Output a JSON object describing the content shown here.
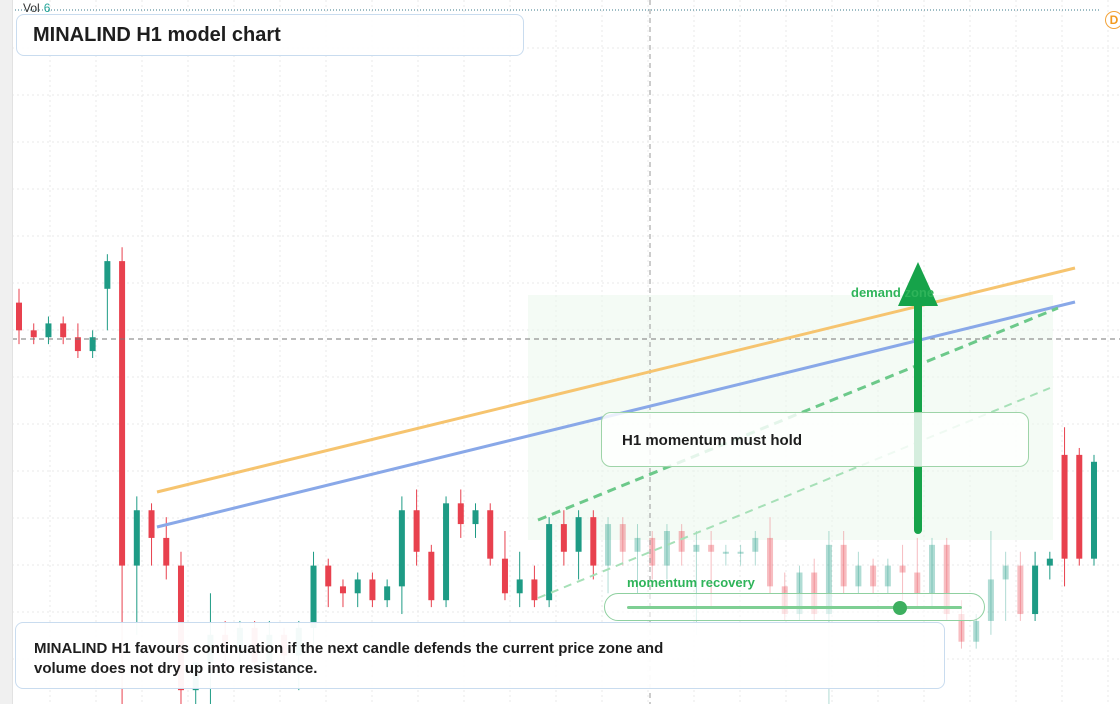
{
  "header": {
    "volume_label": "Vol",
    "volume_value": "6",
    "badge_letter": "D"
  },
  "title": "MINALIND H1 model chart",
  "callout": "H1 momentum must hold",
  "zone_label": "demand zone",
  "slider": {
    "label": "momentum recovery",
    "value": 0.81
  },
  "note": {
    "line1": "MINALIND H1 favours continuation if the next candle defends the current price zone and",
    "line2": "volume does not dry up into resistance."
  },
  "colors": {
    "up": "#1e9b85",
    "down": "#e8414e",
    "accent": "#16a34a",
    "line_orange": "#f6c46f",
    "line_blue": "#89a8e8"
  },
  "chart_data": {
    "type": "candlestick",
    "title": "MINALIND H1 model chart",
    "price_levels": {
      "scale_min": 0,
      "scale_max": 100,
      "crosshair_level": 65
    },
    "candles": [
      {
        "o": 58,
        "h": 60,
        "l": 52,
        "c": 54,
        "up": false
      },
      {
        "o": 54,
        "h": 55,
        "l": 52,
        "c": 53,
        "up": false
      },
      {
        "o": 53,
        "h": 56,
        "l": 52,
        "c": 55,
        "up": true
      },
      {
        "o": 55,
        "h": 56,
        "l": 52,
        "c": 53,
        "up": false
      },
      {
        "o": 53,
        "h": 55,
        "l": 50,
        "c": 51,
        "up": false
      },
      {
        "o": 51,
        "h": 54,
        "l": 50,
        "c": 53,
        "up": true
      },
      {
        "o": 60,
        "h": 65,
        "l": 54,
        "c": 64,
        "up": true
      },
      {
        "o": 64,
        "h": 66,
        "l": -10,
        "c": 20,
        "up": false
      },
      {
        "o": 20,
        "h": 30,
        "l": 10,
        "c": 28,
        "up": true
      },
      {
        "o": 28,
        "h": 29,
        "l": 20,
        "c": 24,
        "up": false
      },
      {
        "o": 24,
        "h": 27,
        "l": 18,
        "c": 20,
        "up": false
      },
      {
        "o": 20,
        "h": 22,
        "l": 0,
        "c": 2,
        "up": false
      },
      {
        "o": 2,
        "h": 6,
        "l": 0,
        "c": 6,
        "up": true
      },
      {
        "o": 6,
        "h": 16,
        "l": 0,
        "c": 10,
        "up": true
      },
      {
        "o": 10,
        "h": 12,
        "l": 4,
        "c": 8,
        "up": false
      },
      {
        "o": 8,
        "h": 12,
        "l": 6,
        "c": 11,
        "up": true
      },
      {
        "o": 11,
        "h": 12,
        "l": 5,
        "c": 6,
        "up": false
      },
      {
        "o": 6,
        "h": 12,
        "l": 6,
        "c": 10,
        "up": true
      },
      {
        "o": 10,
        "h": 11,
        "l": 5,
        "c": 7,
        "up": false
      },
      {
        "o": 7,
        "h": 12,
        "l": 2,
        "c": 11,
        "up": true
      },
      {
        "o": 11,
        "h": 22,
        "l": 8,
        "c": 20,
        "up": true
      },
      {
        "o": 20,
        "h": 21,
        "l": 14,
        "c": 17,
        "up": false
      },
      {
        "o": 17,
        "h": 18,
        "l": 14,
        "c": 16,
        "up": false
      },
      {
        "o": 16,
        "h": 19,
        "l": 14,
        "c": 18,
        "up": true
      },
      {
        "o": 18,
        "h": 19,
        "l": 14,
        "c": 15,
        "up": false
      },
      {
        "o": 15,
        "h": 18,
        "l": 14,
        "c": 17,
        "up": true
      },
      {
        "o": 17,
        "h": 30,
        "l": 13,
        "c": 28,
        "up": true
      },
      {
        "o": 28,
        "h": 31,
        "l": 20,
        "c": 22,
        "up": false
      },
      {
        "o": 22,
        "h": 23,
        "l": 14,
        "c": 15,
        "up": false
      },
      {
        "o": 15,
        "h": 30,
        "l": 14,
        "c": 29,
        "up": true
      },
      {
        "o": 29,
        "h": 31,
        "l": 24,
        "c": 26,
        "up": false
      },
      {
        "o": 26,
        "h": 29,
        "l": 24,
        "c": 28,
        "up": true
      },
      {
        "o": 28,
        "h": 29,
        "l": 20,
        "c": 21,
        "up": false
      },
      {
        "o": 21,
        "h": 25,
        "l": 15,
        "c": 16,
        "up": false
      },
      {
        "o": 16,
        "h": 22,
        "l": 14,
        "c": 18,
        "up": true
      },
      {
        "o": 18,
        "h": 20,
        "l": 14,
        "c": 15,
        "up": false
      },
      {
        "o": 15,
        "h": 27,
        "l": 14,
        "c": 26,
        "up": true
      },
      {
        "o": 26,
        "h": 28,
        "l": 20,
        "c": 22,
        "up": false
      },
      {
        "o": 22,
        "h": 28,
        "l": 18,
        "c": 27,
        "up": true
      },
      {
        "o": 27,
        "h": 28,
        "l": 18,
        "c": 20,
        "up": false
      },
      {
        "o": 20,
        "h": 27,
        "l": 16,
        "c": 26,
        "up": true
      },
      {
        "o": 26,
        "h": 27,
        "l": 20,
        "c": 22,
        "up": false
      },
      {
        "o": 22,
        "h": 26,
        "l": 16,
        "c": 24,
        "up": true
      },
      {
        "o": 24,
        "h": 25,
        "l": 18,
        "c": 20,
        "up": false
      },
      {
        "o": 20,
        "h": 26,
        "l": 18,
        "c": 25,
        "up": true
      },
      {
        "o": 25,
        "h": 26,
        "l": 20,
        "c": 22,
        "up": false
      },
      {
        "o": 22,
        "h": 25,
        "l": 10,
        "c": 23,
        "up": true
      },
      {
        "o": 23,
        "h": 25,
        "l": 14,
        "c": 22,
        "up": false
      },
      {
        "o": 22,
        "h": 23,
        "l": 20,
        "c": 22,
        "up": true
      },
      {
        "o": 22,
        "h": 23,
        "l": 20,
        "c": 22,
        "up": true
      },
      {
        "o": 22,
        "h": 25,
        "l": 20,
        "c": 24,
        "up": true
      },
      {
        "o": 24,
        "h": 27,
        "l": 16,
        "c": 17,
        "up": false
      },
      {
        "o": 17,
        "h": 19,
        "l": 12,
        "c": 13,
        "up": false
      },
      {
        "o": 13,
        "h": 20,
        "l": 12,
        "c": 19,
        "up": true
      },
      {
        "o": 19,
        "h": 21,
        "l": 12,
        "c": 13,
        "up": false
      },
      {
        "o": 13,
        "h": 25,
        "l": 0,
        "c": 23,
        "up": true
      },
      {
        "o": 23,
        "h": 25,
        "l": 16,
        "c": 17,
        "up": false
      },
      {
        "o": 17,
        "h": 22,
        "l": 16,
        "c": 20,
        "up": true
      },
      {
        "o": 20,
        "h": 21,
        "l": 16,
        "c": 17,
        "up": false
      },
      {
        "o": 17,
        "h": 21,
        "l": 16,
        "c": 20,
        "up": true
      },
      {
        "o": 20,
        "h": 23,
        "l": 15,
        "c": 19,
        "up": false
      },
      {
        "o": 19,
        "h": 24,
        "l": 14,
        "c": 16,
        "up": false
      },
      {
        "o": 16,
        "h": 24,
        "l": 14,
        "c": 23,
        "up": true
      },
      {
        "o": 23,
        "h": 24,
        "l": 12,
        "c": 13,
        "up": false
      },
      {
        "o": 13,
        "h": 15,
        "l": 8,
        "c": 9,
        "up": false
      },
      {
        "o": 9,
        "h": 13,
        "l": 8,
        "c": 12,
        "up": true
      },
      {
        "o": 12,
        "h": 25,
        "l": 10,
        "c": 18,
        "up": true
      },
      {
        "o": 18,
        "h": 22,
        "l": 12,
        "c": 20,
        "up": true
      },
      {
        "o": 20,
        "h": 22,
        "l": 12,
        "c": 13,
        "up": false
      },
      {
        "o": 13,
        "h": 22,
        "l": 12,
        "c": 20,
        "up": true
      },
      {
        "o": 20,
        "h": 22,
        "l": 18,
        "c": 21,
        "up": true
      },
      {
        "o": 21,
        "h": 40,
        "l": 17,
        "c": 36,
        "up": false
      },
      {
        "o": 36,
        "h": 37,
        "l": 20,
        "c": 21,
        "up": false
      },
      {
        "o": 21,
        "h": 36,
        "l": 20,
        "c": 35,
        "up": true
      }
    ]
  }
}
